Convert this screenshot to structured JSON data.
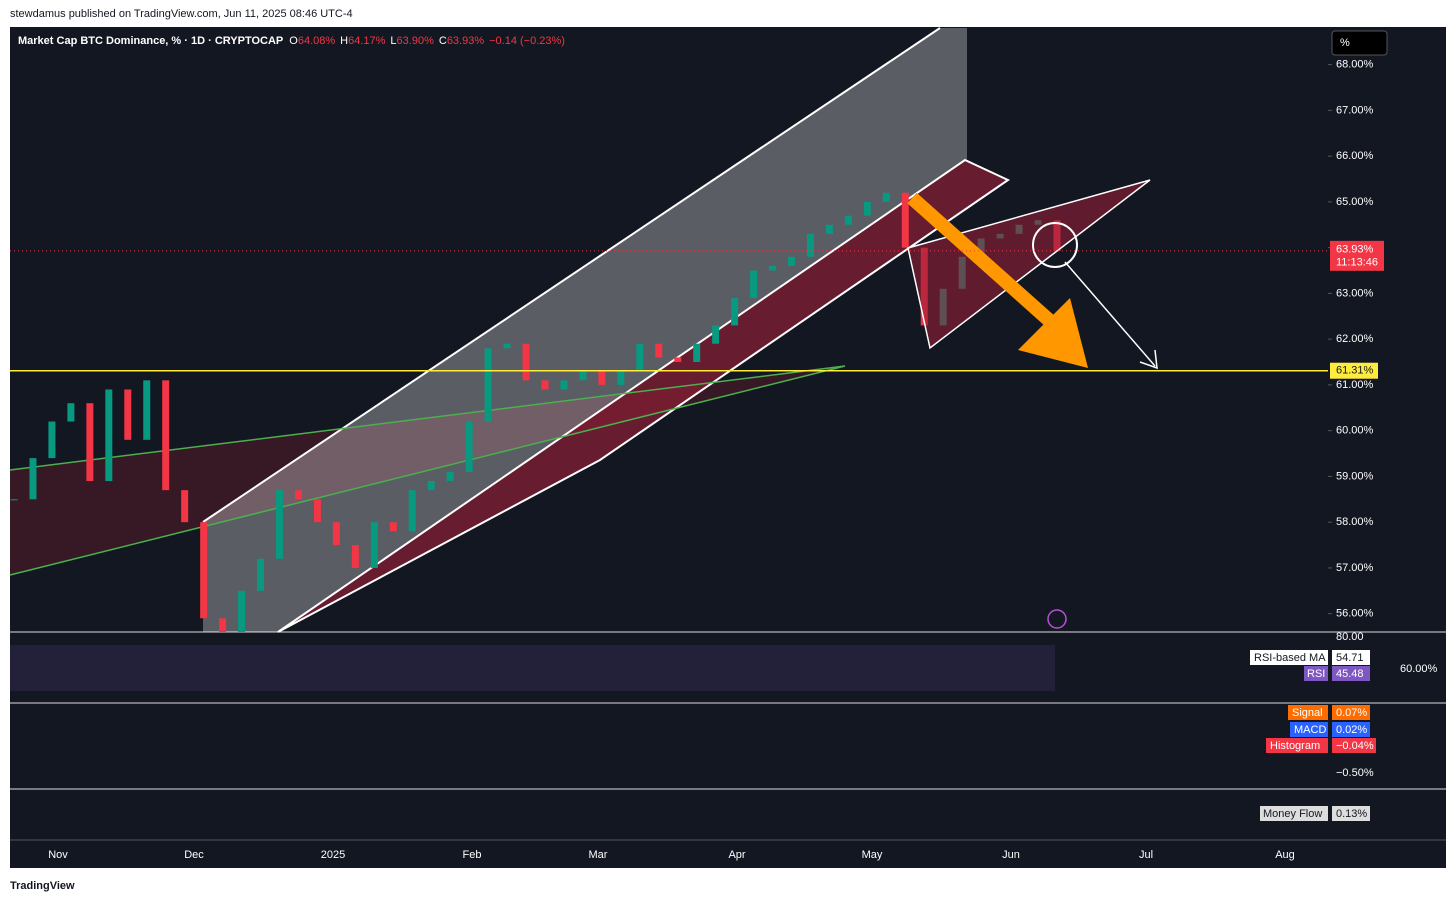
{
  "header": {
    "byline": "stewdamus published on TradingView.com, Jun 11, 2025 08:46 UTC-4",
    "footer": "TradingView"
  },
  "chart_data": {
    "type": "candlestick",
    "title": "Market Cap BTC Dominance, % · 1D · CRYPTOCAP",
    "ohlc": [
      {
        "key": "O",
        "text": "64.08%"
      },
      {
        "key": "H",
        "text": "64.17%"
      },
      {
        "key": "L",
        "text": "63.90%"
      },
      {
        "key": "C",
        "text": "63.93%"
      }
    ],
    "change": "−0.14 (−0.23%)",
    "scale_button": "%",
    "closes": [
      58.5,
      59.4,
      60.2,
      60.6,
      58.9,
      60.9,
      59.8,
      61.1,
      58.7,
      58.0,
      55.9,
      55.6,
      56.5,
      57.2,
      58.7,
      58.5,
      58.0,
      57.5,
      57.0,
      58.0,
      57.8,
      58.7,
      58.9,
      59.1,
      60.2,
      61.8,
      61.9,
      61.1,
      60.9,
      61.1,
      61.3,
      61.0,
      61.3,
      61.9,
      61.6,
      61.5,
      61.9,
      62.3,
      62.9,
      63.5,
      63.6,
      63.8,
      64.3,
      64.5,
      64.7,
      65.0,
      65.2,
      64.0,
      62.3,
      63.1,
      63.8,
      64.2,
      64.3,
      64.5,
      64.6,
      63.93
    ],
    "ylim": [
      55.6,
      68.8
    ],
    "yticks": [
      {
        "value": 56,
        "label": "56.00%"
      },
      {
        "value": 57,
        "label": "57.00%"
      },
      {
        "value": 58,
        "label": "58.00%"
      },
      {
        "value": 59,
        "label": "59.00%"
      },
      {
        "value": 60,
        "label": "60.00%"
      },
      {
        "value": 61,
        "label": "61.00%"
      },
      {
        "value": 62,
        "label": "62.00%"
      },
      {
        "value": 63,
        "label": "63.00%"
      },
      {
        "value": 64,
        "label": "64.00%"
      },
      {
        "value": 65,
        "label": "65.00%"
      },
      {
        "value": 66,
        "label": "66.00%"
      },
      {
        "value": 67,
        "label": "67.00%"
      },
      {
        "value": 68,
        "label": "68.00%"
      }
    ],
    "level": {
      "value": 61.31,
      "label": "61.31%",
      "color": "#ffeb3b"
    },
    "last": {
      "value": 63.93,
      "label": "63.93%",
      "countdown": "11:13:46",
      "color": "#f23645"
    },
    "up_color": "#089981",
    "down_color": "#f23645",
    "time_labels": [
      "Nov",
      "Dec",
      "2025",
      "Feb",
      "Mar",
      "Apr",
      "May",
      "Jun",
      "Jul",
      "Aug"
    ],
    "rsi": {
      "top": "80.00",
      "mid": "60.00%",
      "ma_name": "RSI-based MA",
      "ma_value": "54.71",
      "name": "RSI",
      "value": "45.48"
    },
    "macd": {
      "signal_name": "Signal",
      "signal_value": "0.07%",
      "macd_name": "MACD",
      "macd_value": "0.02%",
      "hist_name": "Histogram",
      "hist_value": "−0.04%",
      "bottom": "−0.50%"
    },
    "money_flow": {
      "name": "Money Flow",
      "value": "0.13%"
    }
  }
}
